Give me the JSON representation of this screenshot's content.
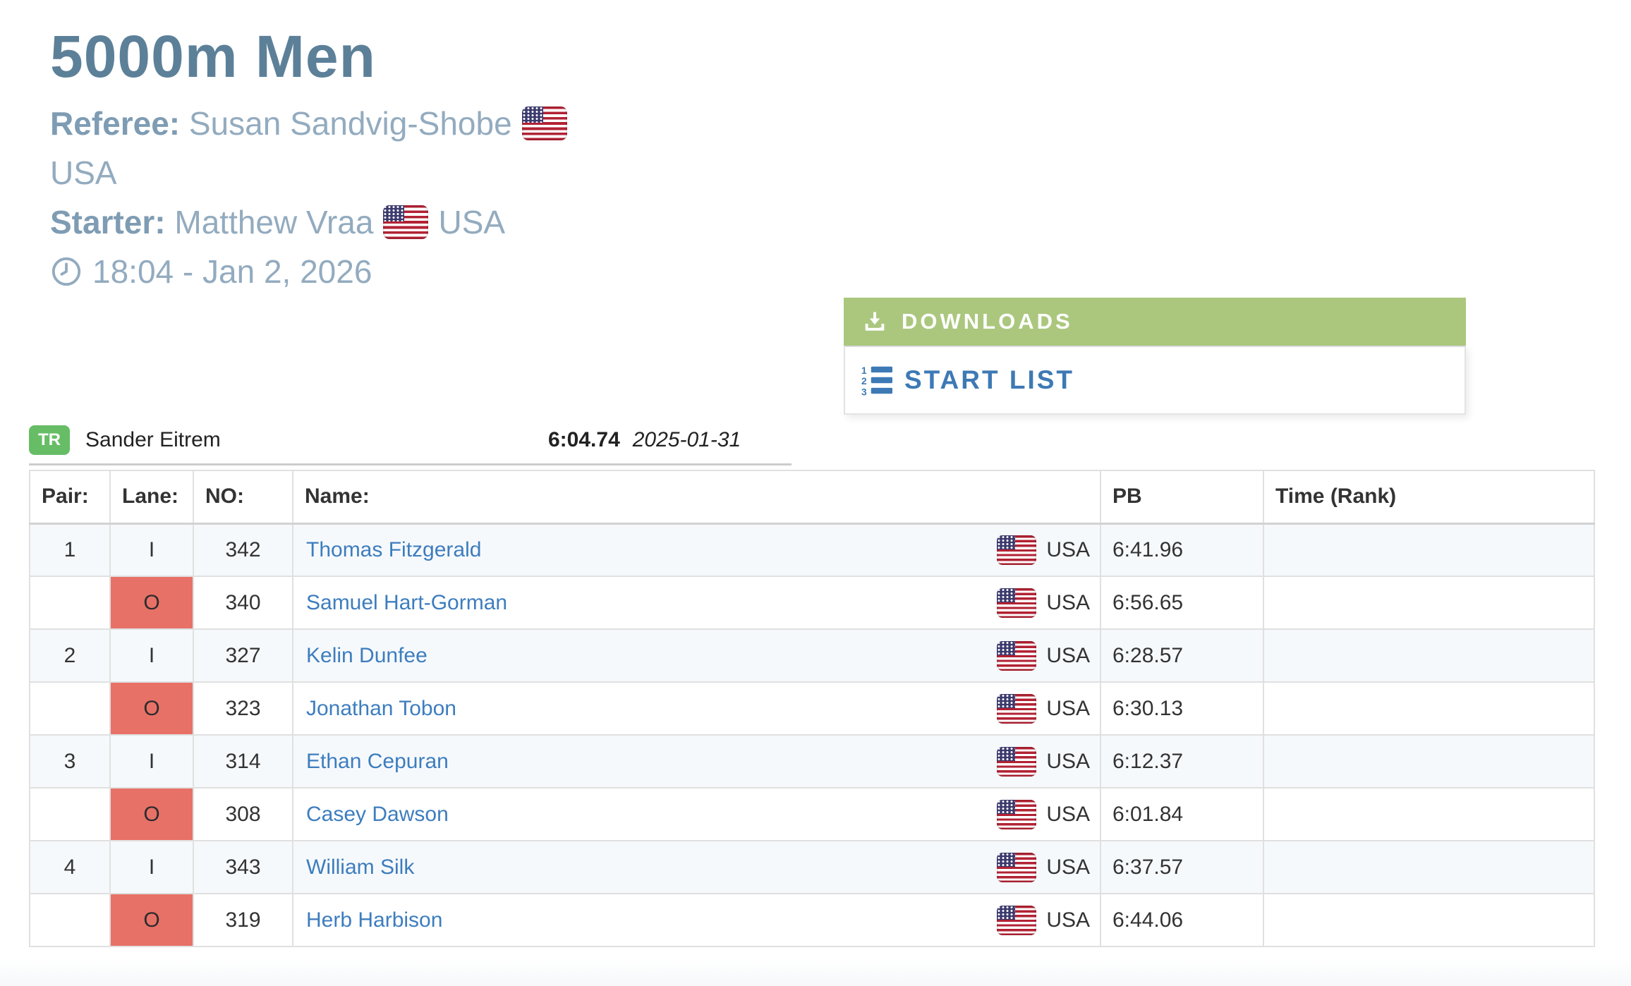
{
  "page": {
    "title": "5000m Men",
    "referee_label": "Referee:",
    "referee_name": "Susan Sandvig-Shobe",
    "referee_country": "USA",
    "starter_label": "Starter:",
    "starter_name": "Matthew Vraa",
    "starter_country": "USA",
    "schedule": "18:04 - Jan 2, 2026"
  },
  "downloads": {
    "header": "DOWNLOADS",
    "start_list_label": "START LIST"
  },
  "record": {
    "badge": "TR",
    "holder": "Sander Eitrem",
    "time": "6:04.74",
    "date": "2025-01-31"
  },
  "table": {
    "columns": [
      "Pair:",
      "Lane:",
      "NO:",
      "Name:",
      "PB",
      "Time (Rank)"
    ],
    "rows": [
      {
        "pair": "1",
        "lane": "I",
        "no": "342",
        "name": "Thomas Fitzgerald",
        "country": "USA",
        "pb": "6:41.96",
        "time_rank": ""
      },
      {
        "pair": "",
        "lane": "O",
        "no": "340",
        "name": "Samuel Hart-Gorman",
        "country": "USA",
        "pb": "6:56.65",
        "time_rank": ""
      },
      {
        "pair": "2",
        "lane": "I",
        "no": "327",
        "name": "Kelin Dunfee",
        "country": "USA",
        "pb": "6:28.57",
        "time_rank": ""
      },
      {
        "pair": "",
        "lane": "O",
        "no": "323",
        "name": "Jonathan Tobon",
        "country": "USA",
        "pb": "6:30.13",
        "time_rank": ""
      },
      {
        "pair": "3",
        "lane": "I",
        "no": "314",
        "name": "Ethan Cepuran",
        "country": "USA",
        "pb": "6:12.37",
        "time_rank": ""
      },
      {
        "pair": "",
        "lane": "O",
        "no": "308",
        "name": "Casey Dawson",
        "country": "USA",
        "pb": "6:01.84",
        "time_rank": ""
      },
      {
        "pair": "4",
        "lane": "I",
        "no": "343",
        "name": "William Silk",
        "country": "USA",
        "pb": "6:37.57",
        "time_rank": ""
      },
      {
        "pair": "",
        "lane": "O",
        "no": "319",
        "name": "Herb Harbison",
        "country": "USA",
        "pb": "6:44.06",
        "time_rank": ""
      }
    ]
  },
  "icons": {
    "downloads": "download-icon",
    "start_list": "ordered-list-icon",
    "schedule": "clock-icon",
    "nationality": "us-flag-icon"
  },
  "colors": {
    "title_blue": "#5d8099",
    "meta_label": "#7e9cb3",
    "meta_value": "#93abbf",
    "accent_green": "#abc77e",
    "start_list_blue": "#3d79b5",
    "record_badge_green": "#67bd66",
    "outer_lane_red": "#e87167",
    "link_blue": "#3d7dbe",
    "striped_row": "#f6f9fc"
  }
}
